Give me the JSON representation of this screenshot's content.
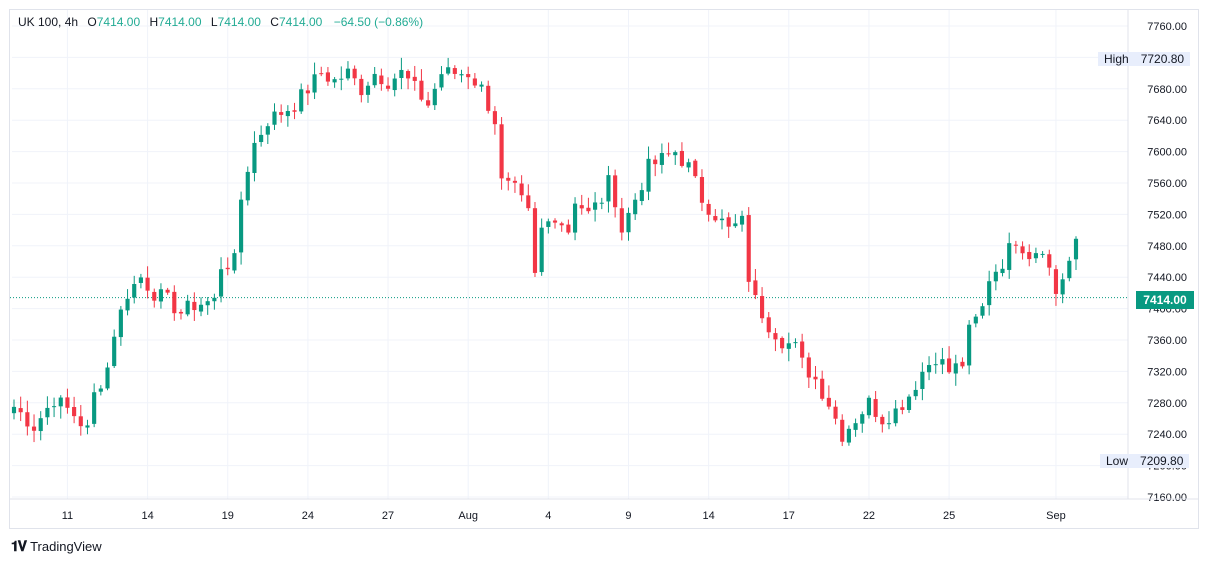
{
  "legend": {
    "symbol": "UK 100, 4h",
    "open_key": "O",
    "open": "7414.00",
    "high_key": "H",
    "high": "7414.00",
    "low_key": "L",
    "low": "7414.00",
    "close_key": "C",
    "close": "7414.00",
    "change": "−64.50 (−0.86%)"
  },
  "markers": {
    "high_label": "High",
    "high_value": "7720.80",
    "low_label": "Low",
    "low_value": "7209.80",
    "last_price": "7414.00"
  },
  "brand": {
    "name": "TradingView"
  },
  "colors": {
    "up": "#089981",
    "down": "#f23645",
    "grid": "#f0f3fa",
    "price_line": "#089981"
  },
  "chart_data": {
    "type": "candlestick",
    "title": "UK 100, 4h",
    "xlabel": "",
    "ylabel": "",
    "ylim": [
      7160,
      7760
    ],
    "y_ticks": [
      7160,
      7200,
      7240,
      7280,
      7320,
      7360,
      7400,
      7440,
      7480,
      7520,
      7560,
      7600,
      7640,
      7680,
      7720,
      7760
    ],
    "y_tick_labels": [
      "7160.00",
      "7200.00",
      "7240.00",
      "7280.00",
      "7320.00",
      "7360.00",
      "7400.00",
      "7440.00",
      "7480.00",
      "7520.00",
      "7560.00",
      "7600.00",
      "7640.00",
      "7680.00",
      "7720.00",
      "7760.00"
    ],
    "x_ticks": [
      {
        "label": "11",
        "bar": 8
      },
      {
        "label": "14",
        "bar": 20
      },
      {
        "label": "19",
        "bar": 32
      },
      {
        "label": "24",
        "bar": 44
      },
      {
        "label": "27",
        "bar": 56
      },
      {
        "label": "Aug",
        "bar": 68
      },
      {
        "label": "4",
        "bar": 80
      },
      {
        "label": "9",
        "bar": 92
      },
      {
        "label": "14",
        "bar": 104
      },
      {
        "label": "17",
        "bar": 116
      },
      {
        "label": "22",
        "bar": 128
      },
      {
        "label": "25",
        "bar": 140
      },
      {
        "label": "Sep",
        "bar": 156
      }
    ],
    "last_price": 7414.0,
    "session_high": 7720.8,
    "session_low": 7209.8,
    "close_anchors": [
      [
        0,
        7275
      ],
      [
        3,
        7250
      ],
      [
        6,
        7285
      ],
      [
        9,
        7265
      ],
      [
        11,
        7245
      ],
      [
        12,
        7290
      ],
      [
        14,
        7325
      ],
      [
        15,
        7370
      ],
      [
        17,
        7420
      ],
      [
        19,
        7440
      ],
      [
        21,
        7420
      ],
      [
        23,
        7410
      ],
      [
        25,
        7395
      ],
      [
        27,
        7405
      ],
      [
        30,
        7410
      ],
      [
        31,
        7455
      ],
      [
        33,
        7460
      ],
      [
        34,
        7540
      ],
      [
        35,
        7580
      ],
      [
        36,
        7610
      ],
      [
        38,
        7640
      ],
      [
        40,
        7650
      ],
      [
        42,
        7660
      ],
      [
        44,
        7680
      ],
      [
        46,
        7700
      ],
      [
        48,
        7690
      ],
      [
        50,
        7700
      ],
      [
        52,
        7680
      ],
      [
        54,
        7700
      ],
      [
        56,
        7690
      ],
      [
        58,
        7700
      ],
      [
        60,
        7680
      ],
      [
        62,
        7660
      ],
      [
        64,
        7700
      ],
      [
        66,
        7700
      ],
      [
        68,
        7700
      ],
      [
        70,
        7680
      ],
      [
        72,
        7640
      ],
      [
        73,
        7560
      ],
      [
        75,
        7550
      ],
      [
        77,
        7520
      ],
      [
        78,
        7440
      ],
      [
        79,
        7500
      ],
      [
        81,
        7520
      ],
      [
        83,
        7500
      ],
      [
        84,
        7540
      ],
      [
        86,
        7520
      ],
      [
        88,
        7540
      ],
      [
        89,
        7560
      ],
      [
        90,
        7540
      ],
      [
        91,
        7500
      ],
      [
        93,
        7540
      ],
      [
        95,
        7580
      ],
      [
        97,
        7590
      ],
      [
        99,
        7600
      ],
      [
        101,
        7580
      ],
      [
        103,
        7540
      ],
      [
        105,
        7520
      ],
      [
        107,
        7500
      ],
      [
        109,
        7510
      ],
      [
        110,
        7440
      ],
      [
        111,
        7410
      ],
      [
        113,
        7380
      ],
      [
        115,
        7360
      ],
      [
        117,
        7350
      ],
      [
        118,
        7330
      ],
      [
        120,
        7310
      ],
      [
        122,
        7280
      ],
      [
        124,
        7240
      ],
      [
        126,
        7260
      ],
      [
        128,
        7280
      ],
      [
        130,
        7260
      ],
      [
        132,
        7270
      ],
      [
        134,
        7290
      ],
      [
        136,
        7320
      ],
      [
        138,
        7340
      ],
      [
        140,
        7320
      ],
      [
        142,
        7330
      ],
      [
        143,
        7370
      ],
      [
        145,
        7400
      ],
      [
        146,
        7440
      ],
      [
        148,
        7460
      ],
      [
        150,
        7490
      ],
      [
        152,
        7470
      ],
      [
        154,
        7480
      ],
      [
        156,
        7420
      ],
      [
        158,
        7460
      ],
      [
        159,
        7480
      ]
    ]
  }
}
